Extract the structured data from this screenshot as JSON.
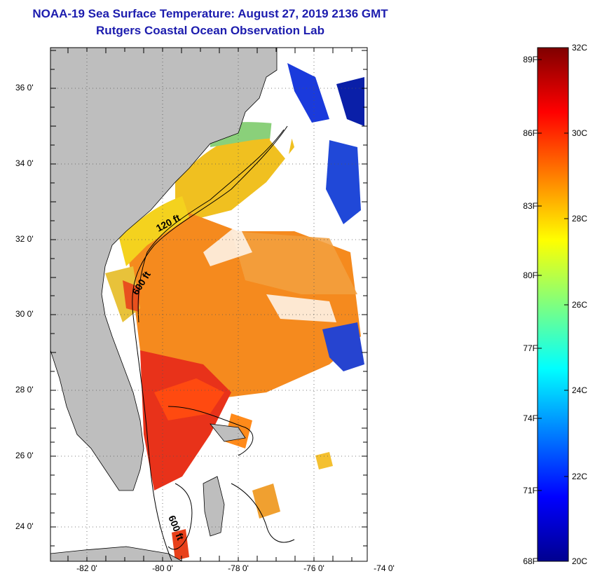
{
  "title": {
    "line1": "NOAA-19 Sea Surface Temperature:  August 27, 2019 2136 GMT",
    "line2": "Rutgers Coastal Ocean Observation Lab"
  },
  "map": {
    "lat_labels": [
      "36 0'",
      "34 0'",
      "32 0'",
      "30 0'",
      "28 0'",
      "26 0'",
      "24 0'"
    ],
    "lon_labels": [
      "-82 0'",
      "-80 0'",
      "-78 0'",
      "-76 0'",
      "-74 0'"
    ],
    "contour_labels": [
      "120 ft",
      "600 ft",
      "600 ft"
    ],
    "colors": {
      "land": "#bebebe",
      "ocean_nodata": "#ffffff",
      "cloud": "#ffffff"
    }
  },
  "colorbar": {
    "fahrenheit_labels": [
      "89F",
      "86F",
      "83F",
      "80F",
      "77F",
      "74F",
      "71F",
      "68F"
    ],
    "celsius_labels": [
      "32C",
      "30C",
      "28C",
      "26C",
      "24C",
      "22C",
      "20C"
    ],
    "range_c": [
      20,
      32
    ],
    "range_f": [
      68,
      89.6
    ],
    "colors": [
      "#00008f",
      "#0000ff",
      "#007fff",
      "#00ffff",
      "#7fff7f",
      "#ffff00",
      "#ff7f00",
      "#ff0000",
      "#7f0000"
    ]
  }
}
